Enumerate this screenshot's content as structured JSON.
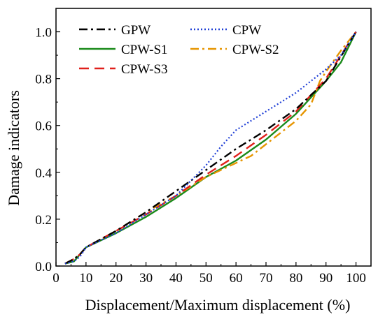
{
  "chart_data": {
    "type": "line",
    "xlabel": "Displacement/Maximum displacement (%)",
    "ylabel": "Damage indicators",
    "xlim": [
      0,
      105
    ],
    "ylim": [
      0,
      1.1
    ],
    "xticks": [
      0,
      10,
      20,
      30,
      40,
      50,
      60,
      70,
      80,
      90,
      100
    ],
    "yticks": [
      0.0,
      0.2,
      0.4,
      0.6,
      0.8,
      1.0
    ],
    "ytick_labels": [
      "0.0",
      "0.2",
      "0.4",
      "0.6",
      "0.8",
      "1.0"
    ],
    "grid": false,
    "legend_position": "top-left",
    "series": [
      {
        "name": "GPW",
        "color": "#000000",
        "dash": "dashdot",
        "x": [
          3,
          6,
          8,
          10,
          20,
          30,
          40,
          50,
          60,
          70,
          80,
          90,
          100
        ],
        "y": [
          0.01,
          0.03,
          0.05,
          0.08,
          0.15,
          0.23,
          0.32,
          0.41,
          0.5,
          0.58,
          0.67,
          0.79,
          1.0
        ]
      },
      {
        "name": "CPW",
        "color": "#1f3fd6",
        "dash": "dotted",
        "x": [
          3,
          6,
          8,
          10,
          20,
          30,
          40,
          50,
          55,
          60,
          70,
          80,
          90,
          95,
          100
        ],
        "y": [
          0.01,
          0.02,
          0.04,
          0.08,
          0.14,
          0.22,
          0.3,
          0.43,
          0.51,
          0.58,
          0.66,
          0.74,
          0.84,
          0.9,
          1.0
        ]
      },
      {
        "name": "CPW-S1",
        "color": "#1a8a1a",
        "dash": "solid",
        "x": [
          3,
          6,
          8,
          10,
          20,
          30,
          40,
          50,
          60,
          70,
          80,
          90,
          95,
          100
        ],
        "y": [
          0.01,
          0.02,
          0.05,
          0.08,
          0.14,
          0.21,
          0.29,
          0.38,
          0.45,
          0.54,
          0.65,
          0.79,
          0.87,
          1.0
        ]
      },
      {
        "name": "CPW-S2",
        "color": "#e69500",
        "dash": "dashdot",
        "x": [
          3,
          6,
          8,
          10,
          20,
          30,
          40,
          50,
          60,
          65,
          70,
          80,
          85,
          88,
          90,
          95,
          100
        ],
        "y": [
          0.01,
          0.03,
          0.05,
          0.08,
          0.15,
          0.23,
          0.3,
          0.38,
          0.44,
          0.47,
          0.52,
          0.62,
          0.69,
          0.79,
          0.83,
          0.92,
          1.0
        ]
      },
      {
        "name": "CPW-S3",
        "color": "#e0201b",
        "dash": "dashed",
        "x": [
          3,
          6,
          8,
          10,
          20,
          30,
          40,
          50,
          60,
          70,
          80,
          90,
          100
        ],
        "y": [
          0.01,
          0.03,
          0.05,
          0.08,
          0.15,
          0.22,
          0.3,
          0.39,
          0.47,
          0.56,
          0.66,
          0.8,
          1.0
        ]
      }
    ],
    "legend": [
      {
        "series": 0,
        "col": 0,
        "row": 0
      },
      {
        "series": 1,
        "col": 1,
        "row": 0
      },
      {
        "series": 2,
        "col": 0,
        "row": 1
      },
      {
        "series": 3,
        "col": 1,
        "row": 1
      },
      {
        "series": 4,
        "col": 0,
        "row": 2
      }
    ]
  }
}
